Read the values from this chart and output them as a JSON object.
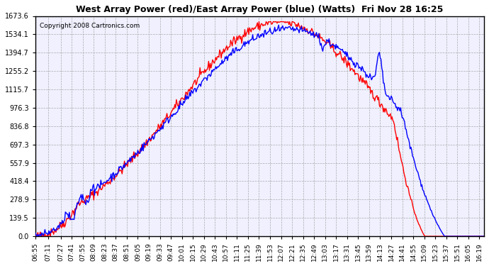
{
  "title": "West Array Power (red)/East Array Power (blue) (Watts)  Fri Nov 28 16:25",
  "copyright": "Copyright 2008 Cartronics.com",
  "background_color": "#ffffff",
  "plot_background": "#ffffff",
  "grid_color": "#aaaaaa",
  "yticks": [
    0.0,
    139.5,
    278.9,
    418.4,
    557.9,
    697.3,
    836.8,
    976.3,
    1115.7,
    1255.2,
    1394.7,
    1534.1,
    1673.6
  ],
  "xtick_labels": [
    "06:55",
    "07:11",
    "07:27",
    "07:41",
    "07:55",
    "08:09",
    "08:23",
    "08:37",
    "08:51",
    "09:05",
    "09:19",
    "09:33",
    "09:47",
    "10:01",
    "10:15",
    "10:29",
    "10:43",
    "10:57",
    "11:11",
    "11:25",
    "11:39",
    "11:53",
    "12:07",
    "12:21",
    "12:35",
    "12:49",
    "13:03",
    "13:17",
    "13:31",
    "13:45",
    "13:59",
    "14:13",
    "14:27",
    "14:41",
    "14:55",
    "15:09",
    "15:23",
    "15:37",
    "15:51",
    "16:05",
    "16:19"
  ],
  "ymin": 0.0,
  "ymax": 1673.6,
  "red_line_color": "#ff0000",
  "blue_line_color": "#0000ff",
  "line_width": 1.0
}
